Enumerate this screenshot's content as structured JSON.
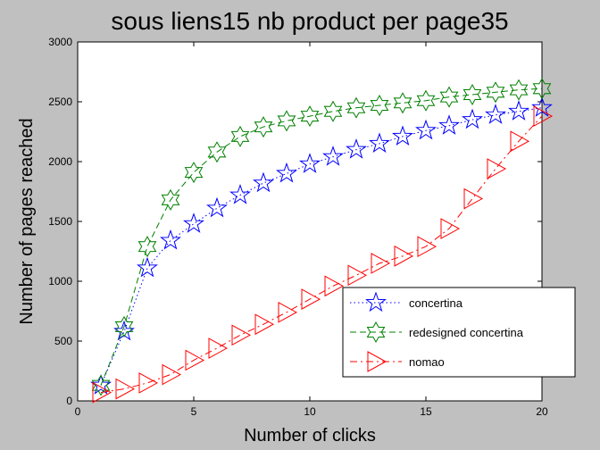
{
  "chart_data": {
    "type": "line",
    "title": "sous liens15 nb product per page35",
    "xlabel": "Number of clicks",
    "ylabel": "Number of pages reached",
    "xlim": [
      0,
      20
    ],
    "ylim": [
      0,
      3000
    ],
    "xticks": [
      0,
      5,
      10,
      15,
      20
    ],
    "yticks": [
      0,
      500,
      1000,
      1500,
      2000,
      2500,
      3000
    ],
    "grid": false,
    "legend_position": "lower-right",
    "x": [
      1,
      2,
      3,
      4,
      5,
      6,
      7,
      8,
      9,
      10,
      11,
      12,
      13,
      14,
      15,
      16,
      17,
      18,
      19,
      20
    ],
    "series": [
      {
        "name": "concertina",
        "color": "#0000ff",
        "line_style": "dotted",
        "marker": "pentagram",
        "values": [
          130,
          580,
          1110,
          1340,
          1480,
          1610,
          1720,
          1820,
          1900,
          1980,
          2040,
          2100,
          2150,
          2210,
          2260,
          2300,
          2350,
          2390,
          2420,
          2450
        ]
      },
      {
        "name": "redesigned concertina",
        "color": "#008000",
        "line_style": "dashed",
        "marker": "hexagram",
        "values": [
          130,
          620,
          1290,
          1680,
          1910,
          2080,
          2210,
          2290,
          2340,
          2380,
          2420,
          2450,
          2470,
          2490,
          2510,
          2540,
          2560,
          2580,
          2600,
          2610
        ]
      },
      {
        "name": "nomao",
        "color": "#ff0000",
        "line_style": "dashdot",
        "marker": "triangle-right",
        "values": [
          70,
          100,
          150,
          220,
          340,
          440,
          550,
          640,
          740,
          850,
          960,
          1050,
          1150,
          1210,
          1290,
          1440,
          1690,
          1940,
          2170,
          2380
        ]
      }
    ]
  }
}
